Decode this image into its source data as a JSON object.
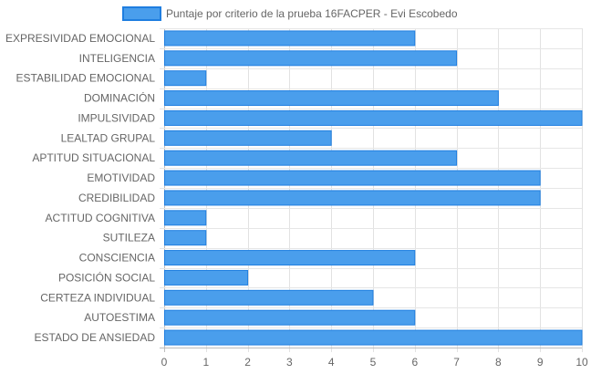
{
  "chart_data": {
    "type": "bar",
    "orientation": "horizontal",
    "categories": [
      "EXPRESIVIDAD EMOCIONAL",
      "INTELIGENCIA",
      "ESTABILIDAD EMOCIONAL",
      "DOMINACIÓN",
      "IMPULSIVIDAD",
      "LEALTAD GRUPAL",
      "APTITUD SITUACIONAL",
      "EMOTIVIDAD",
      "CREDIBILIDAD",
      "ACTITUD COGNITIVA",
      "SUTILEZA",
      "CONSCIENCIA",
      "POSICIÓN SOCIAL",
      "CERTEZA INDIVIDUAL",
      "AUTOESTIMA",
      "ESTADO DE ANSIEDAD"
    ],
    "series": [
      {
        "name": "Puntaje por criterio de la prueba 16FACPER - Evi Escobedo",
        "values": [
          6,
          7,
          1,
          8,
          10,
          4,
          7,
          9,
          9,
          1,
          1,
          6,
          2,
          5,
          6,
          10
        ],
        "color": "#4a9eec",
        "border_color": "#1f7ee0"
      }
    ],
    "xlim": [
      0,
      10
    ],
    "x_ticks": [
      "0",
      "1",
      "2",
      "3",
      "4",
      "5",
      "6",
      "7",
      "8",
      "9",
      "10"
    ],
    "grid": true,
    "legend_position": "top"
  }
}
